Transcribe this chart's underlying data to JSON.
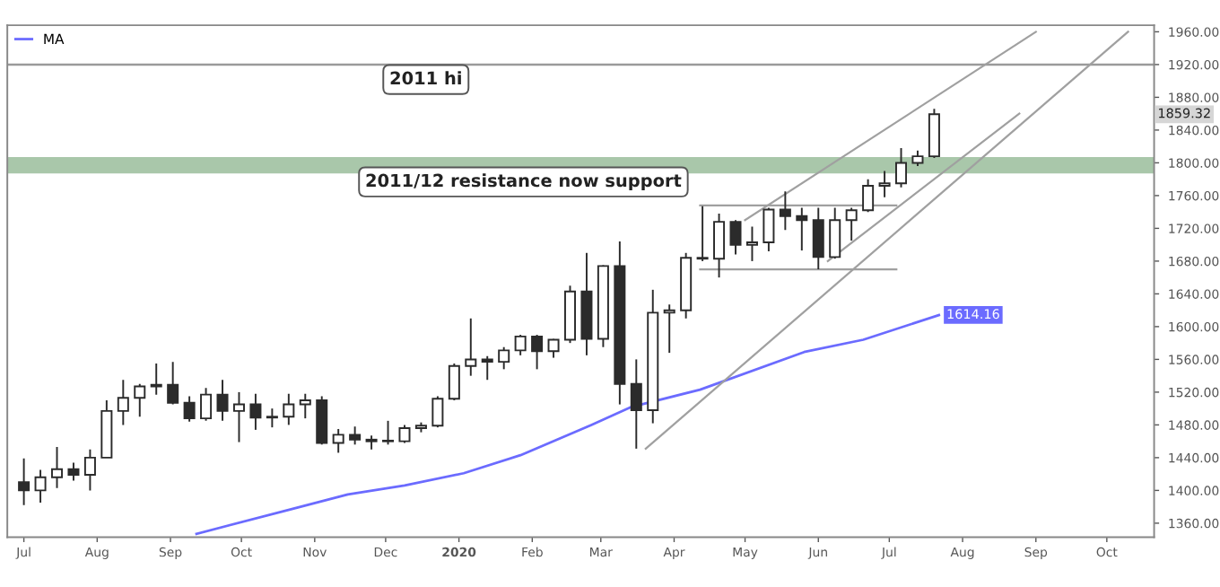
{
  "chart_data": {
    "type": "candlestick",
    "series": [
      {
        "color": "#2b2b2b",
        "x": [
          "2019-07-01",
          "2019-07-08",
          "2019-07-15",
          "2019-07-22",
          "2019-07-29",
          "2019-08-05",
          "2019-08-12",
          "2019-08-19",
          "2019-08-26",
          "2019-09-02",
          "2019-09-09",
          "2019-09-16",
          "2019-09-23",
          "2019-09-30",
          "2019-10-07",
          "2019-10-14",
          "2019-10-21",
          "2019-10-28",
          "2019-11-04",
          "2019-11-11",
          "2019-11-18",
          "2019-11-25",
          "2019-12-02",
          "2019-12-09",
          "2019-12-16",
          "2019-12-23",
          "2019-12-30",
          "2020-01-06",
          "2020-01-13",
          "2020-01-20",
          "2020-01-27",
          "2020-02-03",
          "2020-02-10",
          "2020-02-17",
          "2020-02-24",
          "2020-03-02",
          "2020-03-09",
          "2020-03-16",
          "2020-03-23",
          "2020-03-30",
          "2020-04-06",
          "2020-04-13",
          "2020-04-20",
          "2020-04-27",
          "2020-05-04",
          "2020-05-11",
          "2020-05-18",
          "2020-05-25",
          "2020-06-01",
          "2020-06-08",
          "2020-06-15",
          "2020-06-22",
          "2020-06-29",
          "2020-07-06",
          "2020-07-13",
          "2020-07-20"
        ],
        "ohlc": [
          [
            1410,
            1439,
            1382,
            1400
          ],
          [
            1400,
            1425,
            1385,
            1416
          ],
          [
            1416,
            1453,
            1403,
            1426
          ],
          [
            1426,
            1434,
            1412,
            1419
          ],
          [
            1419,
            1450,
            1400,
            1440
          ],
          [
            1440,
            1510,
            1440,
            1497
          ],
          [
            1497,
            1535,
            1480,
            1513
          ],
          [
            1513,
            1530,
            1490,
            1527
          ],
          [
            1527,
            1555,
            1517,
            1529
          ],
          [
            1529,
            1557,
            1505,
            1507
          ],
          [
            1507,
            1515,
            1484,
            1488
          ],
          [
            1488,
            1525,
            1485,
            1517
          ],
          [
            1517,
            1535,
            1485,
            1497
          ],
          [
            1497,
            1520,
            1459,
            1505
          ],
          [
            1505,
            1518,
            1474,
            1489
          ],
          [
            1489,
            1500,
            1477,
            1490
          ],
          [
            1490,
            1518,
            1480,
            1505
          ],
          [
            1505,
            1518,
            1488,
            1510
          ],
          [
            1510,
            1515,
            1456,
            1458
          ],
          [
            1458,
            1475,
            1446,
            1468
          ],
          [
            1468,
            1478,
            1456,
            1462
          ],
          [
            1462,
            1467,
            1450,
            1460
          ],
          [
            1460,
            1485,
            1456,
            1460
          ],
          [
            1460,
            1480,
            1458,
            1476
          ],
          [
            1476,
            1483,
            1471,
            1479
          ],
          [
            1479,
            1515,
            1477,
            1512
          ],
          [
            1512,
            1555,
            1510,
            1552
          ],
          [
            1552,
            1610,
            1540,
            1560
          ],
          [
            1560,
            1564,
            1535,
            1557
          ],
          [
            1557,
            1575,
            1548,
            1571
          ],
          [
            1571,
            1590,
            1565,
            1588
          ],
          [
            1588,
            1590,
            1548,
            1570
          ],
          [
            1570,
            1585,
            1562,
            1584
          ],
          [
            1584,
            1650,
            1580,
            1643
          ],
          [
            1643,
            1690,
            1565,
            1585
          ],
          [
            1585,
            1675,
            1575,
            1674
          ],
          [
            1674,
            1704,
            1505,
            1530
          ],
          [
            1530,
            1560,
            1451,
            1498
          ],
          [
            1498,
            1645,
            1482,
            1617
          ],
          [
            1617,
            1627,
            1568,
            1620
          ],
          [
            1620,
            1690,
            1610,
            1684
          ],
          [
            1684,
            1747,
            1680,
            1683
          ],
          [
            1683,
            1738,
            1660,
            1728
          ],
          [
            1728,
            1730,
            1688,
            1700
          ],
          [
            1700,
            1722,
            1680,
            1703
          ],
          [
            1703,
            1745,
            1692,
            1743
          ],
          [
            1743,
            1765,
            1718,
            1735
          ],
          [
            1735,
            1745,
            1693,
            1730
          ],
          [
            1730,
            1745,
            1670,
            1685
          ],
          [
            1685,
            1745,
            1683,
            1730
          ],
          [
            1730,
            1745,
            1705,
            1742
          ],
          [
            1742,
            1780,
            1740,
            1772
          ],
          [
            1772,
            1790,
            1758,
            1775
          ],
          [
            1775,
            1818,
            1770,
            1800
          ],
          [
            1800,
            1815,
            1796,
            1808
          ],
          [
            1808,
            1866,
            1806,
            1859.32
          ]
        ],
        "value_labels": [
          null,
          null,
          null,
          null,
          null,
          null,
          null,
          null,
          null,
          null,
          null,
          null,
          null,
          null,
          null,
          null,
          null,
          null,
          null,
          null,
          null,
          null,
          null,
          null,
          null,
          null,
          null,
          null,
          null,
          null,
          null,
          null,
          null,
          null,
          null,
          null,
          null,
          null,
          null,
          null,
          null,
          null,
          null,
          null,
          null,
          null,
          null,
          null,
          null,
          null,
          null,
          null,
          null,
          null,
          null,
          "1859.32"
        ]
      },
      {
        "type": "line",
        "name": "MA",
        "color": "#6b6bff",
        "x": [
          "2019-09-12",
          "2019-10-22",
          "2019-11-15",
          "2019-12-09",
          "2020-01-03",
          "2020-01-27",
          "2020-02-26",
          "2020-03-14",
          "2020-04-12",
          "2020-05-26",
          "2020-06-20",
          "2020-07-22"
        ],
        "values": [
          1347,
          1377,
          1395,
          1406,
          1421,
          1443,
          1480,
          1502,
          1523,
          1569,
          1584,
          1614.16
        ],
        "value_labels": [
          null,
          null,
          null,
          null,
          null,
          null,
          null,
          null,
          null,
          null,
          null,
          "1614.16"
        ]
      },
      {
        "type": "line",
        "color": "#a0a0a0",
        "x": [
          "2020-03-20",
          "2020-10-10"
        ],
        "values": [
          1451,
          1960
        ]
      },
      {
        "type": "line",
        "color": "#a0a0a0",
        "x": [
          "2020-05-01",
          "2020-09-01"
        ],
        "values": [
          1730,
          1960
        ]
      },
      {
        "type": "line",
        "color": "#a0a0a0",
        "x": [
          "2020-06-05",
          "2020-08-25"
        ],
        "values": [
          1680,
          1860
        ]
      },
      {
        "type": "line",
        "color": "#a0a0a0",
        "x": [
          "2020-04-12",
          "2020-07-04"
        ],
        "values": [
          1748,
          1748
        ]
      },
      {
        "type": "line",
        "color": "#a0a0a0",
        "x": [
          "2020-04-12",
          "2020-07-04"
        ],
        "values": [
          1670,
          1670
        ]
      }
    ],
    "ref_lines": [
      {
        "axis": "y",
        "value": 1920,
        "label": "2011 hi",
        "color": "#9a9a9a"
      }
    ],
    "bands": [
      {
        "axis": "y",
        "from": 1787,
        "to": 1807,
        "label": "2011/12 resistance now support",
        "color": "#a9c7aa"
      }
    ],
    "xlim": [
      "2019-06-24",
      "2020-10-21"
    ],
    "xticks": [
      {
        "value": "2019-07-01",
        "label": "Jul"
      },
      {
        "value": "2019-08-01",
        "label": "Aug"
      },
      {
        "value": "2019-09-01",
        "label": "Sep"
      },
      {
        "value": "2019-10-01",
        "label": "Oct"
      },
      {
        "value": "2019-11-01",
        "label": "Nov"
      },
      {
        "value": "2019-12-01",
        "label": "Dec"
      },
      {
        "value": "2020-01-01",
        "label": "2020"
      },
      {
        "value": "2020-02-01",
        "label": "Feb"
      },
      {
        "value": "2020-03-01",
        "label": "Mar"
      },
      {
        "value": "2020-04-01",
        "label": "Apr"
      },
      {
        "value": "2020-05-01",
        "label": "May"
      },
      {
        "value": "2020-06-01",
        "label": "Jun"
      },
      {
        "value": "2020-07-01",
        "label": "Jul"
      },
      {
        "value": "2020-08-01",
        "label": "Aug"
      },
      {
        "value": "2020-09-01",
        "label": "Sep"
      },
      {
        "value": "2020-10-01",
        "label": "Oct"
      }
    ],
    "ylim": [
      1343,
      1968
    ],
    "yticks": [
      {
        "value": 1360,
        "label": "1360.00"
      },
      {
        "value": 1400,
        "label": "1400.00"
      },
      {
        "value": 1440,
        "label": "1440.00"
      },
      {
        "value": 1480,
        "label": "1480.00"
      },
      {
        "value": 1520,
        "label": "1520.00"
      },
      {
        "value": 1560,
        "label": "1560.00"
      },
      {
        "value": 1600,
        "label": "1600.00"
      },
      {
        "value": 1640,
        "label": "1640.00"
      },
      {
        "value": 1680,
        "label": "1680.00"
      },
      {
        "value": 1720,
        "label": "1720.00"
      },
      {
        "value": 1760,
        "label": "1760.00"
      },
      {
        "value": 1800,
        "label": "1800.00"
      },
      {
        "value": 1840,
        "label": "1840.00"
      },
      {
        "value": 1880,
        "label": "1880.00"
      },
      {
        "value": 1920,
        "label": "1920.00"
      },
      {
        "value": 1960,
        "label": "1960.00"
      }
    ],
    "grid": false,
    "legend": "top left"
  }
}
